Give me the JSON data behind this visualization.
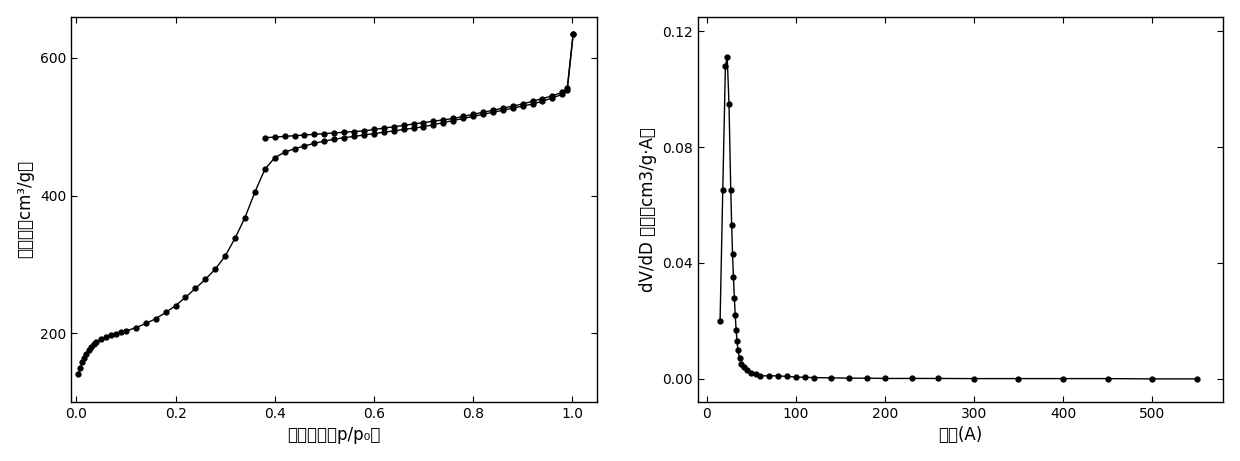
{
  "plot1": {
    "xlabel": "相对压力（p/p₀）",
    "ylabel": "吸附量（cm³/g）",
    "xlim": [
      -0.01,
      1.05
    ],
    "ylim": [
      100,
      660
    ],
    "yticks": [
      200,
      400,
      600
    ],
    "xticks": [
      0.0,
      0.2,
      0.4,
      0.6,
      0.8,
      1.0
    ],
    "adsorption_x": [
      0.004,
      0.008,
      0.012,
      0.016,
      0.02,
      0.025,
      0.03,
      0.035,
      0.04,
      0.05,
      0.06,
      0.07,
      0.08,
      0.09,
      0.1,
      0.12,
      0.14,
      0.16,
      0.18,
      0.2,
      0.22,
      0.24,
      0.26,
      0.28,
      0.3,
      0.32,
      0.34,
      0.36,
      0.38,
      0.4,
      0.42,
      0.44,
      0.46,
      0.48,
      0.5,
      0.52,
      0.54,
      0.56,
      0.58,
      0.6,
      0.62,
      0.64,
      0.66,
      0.68,
      0.7,
      0.72,
      0.74,
      0.76,
      0.78,
      0.8,
      0.82,
      0.84,
      0.86,
      0.88,
      0.9,
      0.92,
      0.94,
      0.96,
      0.98,
      0.99,
      1.002
    ],
    "adsorption_y": [
      140,
      150,
      158,
      164,
      170,
      175,
      180,
      184,
      187,
      191,
      194,
      197,
      199,
      201,
      203,
      208,
      214,
      221,
      230,
      240,
      252,
      265,
      278,
      293,
      312,
      338,
      368,
      405,
      438,
      455,
      463,
      468,
      472,
      476,
      479,
      482,
      484,
      486,
      488,
      490,
      492,
      494,
      496,
      498,
      500,
      503,
      506,
      509,
      512,
      515,
      518,
      521,
      524,
      527,
      530,
      533,
      537,
      542,
      547,
      553,
      635
    ],
    "desorption_x": [
      1.002,
      0.99,
      0.98,
      0.96,
      0.94,
      0.92,
      0.9,
      0.88,
      0.86,
      0.84,
      0.82,
      0.8,
      0.78,
      0.76,
      0.74,
      0.72,
      0.7,
      0.68,
      0.66,
      0.64,
      0.62,
      0.6,
      0.58,
      0.56,
      0.54,
      0.52,
      0.5,
      0.48,
      0.46,
      0.44,
      0.42,
      0.4,
      0.38
    ],
    "desorption_y": [
      635,
      556,
      550,
      545,
      541,
      537,
      533,
      530,
      527,
      524,
      521,
      518,
      515,
      512,
      510,
      508,
      506,
      504,
      502,
      500,
      498,
      496,
      494,
      493,
      492,
      491,
      490,
      489,
      488,
      487,
      486,
      485,
      484
    ]
  },
  "plot2": {
    "xlabel": "孔径(A)",
    "ylabel": "dV/dD 孔容（cm3/g·A）",
    "xlim": [
      -10,
      580
    ],
    "ylim": [
      -0.008,
      0.125
    ],
    "yticks": [
      0.0,
      0.04,
      0.08,
      0.12
    ],
    "xticks": [
      0,
      100,
      200,
      300,
      400,
      500
    ],
    "x": [
      15,
      18,
      21,
      23,
      25,
      27,
      28,
      29,
      30,
      31,
      32,
      33,
      34,
      35,
      37,
      39,
      42,
      45,
      50,
      55,
      60,
      70,
      80,
      90,
      100,
      110,
      120,
      140,
      160,
      180,
      200,
      230,
      260,
      300,
      350,
      400,
      450,
      500,
      550
    ],
    "y": [
      0.02,
      0.065,
      0.108,
      0.111,
      0.095,
      0.065,
      0.053,
      0.043,
      0.035,
      0.028,
      0.022,
      0.017,
      0.013,
      0.01,
      0.007,
      0.005,
      0.004,
      0.003,
      0.002,
      0.0015,
      0.001,
      0.001,
      0.001,
      0.0008,
      0.0006,
      0.0005,
      0.0004,
      0.0003,
      0.0002,
      0.0002,
      0.0001,
      0.0001,
      0.0001,
      5e-05,
      5e-05,
      5e-05,
      5e-05,
      -5e-05,
      -5e-05
    ]
  },
  "color": "#000000",
  "marker": "o",
  "markersize": 3.5,
  "linewidth": 1.0,
  "font_size_label": 12,
  "font_size_tick": 10,
  "bg_color": "#ffffff"
}
